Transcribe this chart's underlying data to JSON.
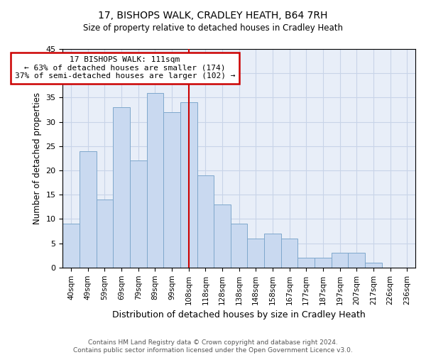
{
  "title": "17, BISHOPS WALK, CRADLEY HEATH, B64 7RH",
  "subtitle": "Size of property relative to detached houses in Cradley Heath",
  "xlabel": "Distribution of detached houses by size in Cradley Heath",
  "ylabel": "Number of detached properties",
  "bar_labels": [
    "40sqm",
    "49sqm",
    "59sqm",
    "69sqm",
    "79sqm",
    "89sqm",
    "99sqm",
    "108sqm",
    "118sqm",
    "128sqm",
    "138sqm",
    "148sqm",
    "158sqm",
    "167sqm",
    "177sqm",
    "187sqm",
    "197sqm",
    "207sqm",
    "217sqm",
    "226sqm",
    "236sqm"
  ],
  "bar_values": [
    9,
    24,
    14,
    33,
    22,
    36,
    32,
    34,
    19,
    13,
    9,
    6,
    7,
    6,
    2,
    2,
    3,
    3,
    1,
    0,
    0
  ],
  "bar_color": "#c9d9f0",
  "bar_edge_color": "#7fa8cc",
  "reference_bar_index": 7,
  "annotation_title": "17 BISHOPS WALK: 111sqm",
  "annotation_line1": "← 63% of detached houses are smaller (174)",
  "annotation_line2": "37% of semi-detached houses are larger (102) →",
  "annotation_box_color": "#ffffff",
  "annotation_box_edge_color": "#cc0000",
  "reference_line_color": "#cc0000",
  "ylim": [
    0,
    45
  ],
  "yticks": [
    0,
    5,
    10,
    15,
    20,
    25,
    30,
    35,
    40,
    45
  ],
  "footer_line1": "Contains HM Land Registry data © Crown copyright and database right 2024.",
  "footer_line2": "Contains public sector information licensed under the Open Government Licence v3.0.",
  "bg_color": "#ffffff",
  "plot_bg_color": "#e8eef8",
  "grid_color": "#c8d4e8"
}
